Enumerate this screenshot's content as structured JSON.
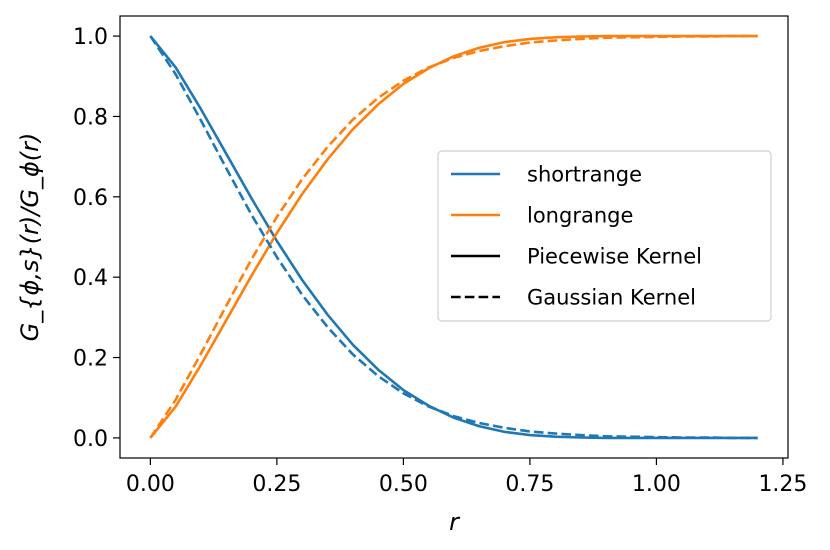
{
  "chart_data": {
    "type": "line",
    "title": "",
    "xlabel": "r",
    "ylabel": "G_{ϕ,s}(r)/G_ϕ(r)",
    "xlim": [
      -0.06,
      1.26
    ],
    "ylim": [
      -0.05,
      1.05
    ],
    "xticks": [
      "0.00",
      "0.25",
      "0.50",
      "0.75",
      "1.00",
      "1.25"
    ],
    "yticks": [
      "0.0",
      "0.2",
      "0.4",
      "0.6",
      "0.8",
      "1.0"
    ],
    "grid": false,
    "legend_position": "center-right",
    "colors": {
      "shortrange": "#1f77b4",
      "longrange": "#ff7f0e",
      "neutral": "#000000"
    },
    "x": [
      0.0,
      0.05,
      0.1,
      0.15,
      0.2,
      0.25,
      0.3,
      0.35,
      0.4,
      0.45,
      0.5,
      0.55,
      0.6,
      0.65,
      0.7,
      0.75,
      0.8,
      0.85,
      0.9,
      0.95,
      1.0,
      1.05,
      1.1,
      1.15,
      1.2
    ],
    "series": [
      {
        "name": "shortrange",
        "kernel": "Piecewise Kernel",
        "color": "#1f77b4",
        "dash": "solid",
        "values": [
          1.0,
          0.922,
          0.818,
          0.707,
          0.596,
          0.49,
          0.393,
          0.307,
          0.232,
          0.17,
          0.119,
          0.08,
          0.05,
          0.029,
          0.015,
          0.007,
          0.003,
          0.001,
          0.0,
          0.0,
          0.0,
          0.0,
          0.0,
          0.0,
          0.0
        ]
      },
      {
        "name": "longrange",
        "kernel": "Piecewise Kernel",
        "color": "#ff7f0e",
        "dash": "solid",
        "values": [
          0.0,
          0.078,
          0.182,
          0.293,
          0.404,
          0.51,
          0.607,
          0.693,
          0.768,
          0.83,
          0.881,
          0.92,
          0.95,
          0.971,
          0.985,
          0.993,
          0.997,
          0.999,
          1.0,
          1.0,
          1.0,
          1.0,
          1.0,
          1.0,
          1.0
        ]
      },
      {
        "name": "shortrange",
        "kernel": "Gaussian Kernel",
        "color": "#1f77b4",
        "dash": "dashed",
        "values": [
          1.0,
          0.905,
          0.79,
          0.671,
          0.555,
          0.45,
          0.356,
          0.276,
          0.208,
          0.154,
          0.111,
          0.078,
          0.054,
          0.037,
          0.025,
          0.016,
          0.011,
          0.007,
          0.004,
          0.003,
          0.002,
          0.001,
          0.001,
          0.0,
          0.0
        ]
      },
      {
        "name": "longrange",
        "kernel": "Gaussian Kernel",
        "color": "#ff7f0e",
        "dash": "dashed",
        "values": [
          0.0,
          0.095,
          0.21,
          0.329,
          0.445,
          0.55,
          0.644,
          0.724,
          0.792,
          0.846,
          0.889,
          0.922,
          0.946,
          0.963,
          0.975,
          0.984,
          0.989,
          0.993,
          0.996,
          0.997,
          0.998,
          0.999,
          0.999,
          1.0,
          1.0
        ]
      }
    ],
    "legend": [
      {
        "label": "shortrange",
        "color": "#1f77b4",
        "dash": "solid"
      },
      {
        "label": "longrange",
        "color": "#ff7f0e",
        "dash": "solid"
      },
      {
        "label": "Piecewise Kernel",
        "color": "#000000",
        "dash": "solid"
      },
      {
        "label": "Gaussian Kernel",
        "color": "#000000",
        "dash": "dashed"
      }
    ]
  }
}
